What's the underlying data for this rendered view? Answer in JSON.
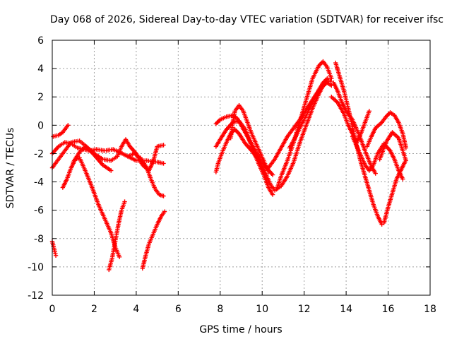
{
  "chart_data": {
    "type": "scatter",
    "title": "Day 068 of 2026, Sidereal Day-to-day VTEC variation (SDTVAR) for receiver ifsc",
    "xlabel": "GPS time / hours",
    "ylabel": "SDTVAR / TECUs",
    "xlim": [
      0,
      18
    ],
    "ylim": [
      -12,
      6
    ],
    "x_ticks": [
      "0",
      "2",
      "4",
      "6",
      "8",
      "10",
      "12",
      "14",
      "16",
      "18"
    ],
    "y_ticks": [
      "-12",
      "-10",
      "-8",
      "-6",
      "-4",
      "-2",
      "0",
      "2",
      "4",
      "6"
    ],
    "grid": true,
    "marker": "+",
    "series_color": "#ff0000",
    "series": [
      {
        "name": "trace-1",
        "points": [
          [
            0,
            -8.2
          ],
          [
            0.1,
            -8.8
          ],
          [
            0.17,
            -9.2
          ]
        ]
      },
      {
        "name": "trace-2",
        "points": [
          [
            0,
            -2.0
          ],
          [
            0.3,
            -1.5
          ],
          [
            0.6,
            -1.2
          ],
          [
            0.9,
            -1.3
          ],
          [
            1.2,
            -1.6
          ],
          [
            1.5,
            -1.7
          ],
          [
            1.8,
            -1.8
          ],
          [
            2.1,
            -1.7
          ],
          [
            2.5,
            -1.8
          ],
          [
            2.9,
            -1.7
          ],
          [
            3.2,
            -1.9
          ],
          [
            3.6,
            -2.2
          ],
          [
            4.0,
            -2.5
          ],
          [
            4.5,
            -2.5
          ],
          [
            5.0,
            -2.6
          ],
          [
            5.3,
            -2.7
          ]
        ]
      },
      {
        "name": "trace-3",
        "points": [
          [
            0,
            -3.0
          ],
          [
            0.3,
            -2.4
          ],
          [
            0.6,
            -1.8
          ],
          [
            0.9,
            -1.2
          ],
          [
            1.3,
            -1.1
          ],
          [
            1.7,
            -1.6
          ],
          [
            2.0,
            -2.0
          ],
          [
            2.4,
            -2.4
          ],
          [
            2.8,
            -2.5
          ],
          [
            3.1,
            -2.2
          ],
          [
            3.3,
            -1.5
          ],
          [
            3.5,
            -1.0
          ],
          [
            3.7,
            -1.5
          ],
          [
            4.0,
            -2.0
          ],
          [
            4.3,
            -2.8
          ],
          [
            4.6,
            -3.2
          ],
          [
            4.8,
            -2.6
          ],
          [
            5.0,
            -1.5
          ],
          [
            5.3,
            -1.4
          ]
        ]
      },
      {
        "name": "trace-4",
        "points": [
          [
            0.05,
            -0.8
          ],
          [
            0.3,
            -0.7
          ],
          [
            0.5,
            -0.5
          ],
          [
            0.75,
            0.0
          ]
        ]
      },
      {
        "name": "trace-5",
        "points": [
          [
            0.5,
            -4.4
          ],
          [
            0.7,
            -3.8
          ],
          [
            0.9,
            -3.0
          ],
          [
            1.1,
            -2.4
          ],
          [
            1.3,
            -2.3
          ],
          [
            1.6,
            -3.3
          ],
          [
            1.9,
            -4.4
          ],
          [
            2.2,
            -5.6
          ],
          [
            2.5,
            -6.6
          ],
          [
            2.8,
            -7.6
          ],
          [
            3.0,
            -8.6
          ],
          [
            3.2,
            -9.3
          ]
        ]
      },
      {
        "name": "trace-6",
        "points": [
          [
            1.0,
            -2.6
          ],
          [
            1.3,
            -1.9
          ],
          [
            1.6,
            -1.5
          ],
          [
            2.0,
            -2.1
          ],
          [
            2.4,
            -2.8
          ],
          [
            2.8,
            -3.2
          ]
        ]
      },
      {
        "name": "trace-7",
        "points": [
          [
            2.7,
            -10.2
          ],
          [
            2.85,
            -9.4
          ],
          [
            3.0,
            -8.2
          ],
          [
            3.15,
            -7.0
          ],
          [
            3.3,
            -6.0
          ],
          [
            3.45,
            -5.4
          ]
        ]
      },
      {
        "name": "trace-8",
        "points": [
          [
            3.6,
            -2.2
          ],
          [
            3.9,
            -2.0
          ],
          [
            4.2,
            -2.3
          ],
          [
            4.5,
            -3.0
          ],
          [
            4.7,
            -3.8
          ],
          [
            4.9,
            -4.5
          ],
          [
            5.1,
            -4.9
          ],
          [
            5.3,
            -5.0
          ]
        ]
      },
      {
        "name": "trace-9",
        "points": [
          [
            4.3,
            -10.1
          ],
          [
            4.45,
            -9.2
          ],
          [
            4.6,
            -8.4
          ],
          [
            4.8,
            -7.7
          ],
          [
            5.0,
            -7.0
          ],
          [
            5.2,
            -6.4
          ],
          [
            5.35,
            -6.1
          ]
        ]
      },
      {
        "name": "trace-10",
        "points": [
          [
            7.8,
            -3.3
          ],
          [
            7.9,
            -2.7
          ],
          [
            8.1,
            -1.9
          ],
          [
            8.3,
            -1.2
          ],
          [
            8.5,
            -0.6
          ],
          [
            8.7,
            -0.3
          ],
          [
            8.9,
            -0.6
          ],
          [
            9.2,
            -1.3
          ],
          [
            9.5,
            -1.8
          ],
          [
            9.8,
            -2.4
          ],
          [
            10.1,
            -3.2
          ],
          [
            10.4,
            -4.2
          ],
          [
            10.6,
            -4.6
          ],
          [
            10.9,
            -4.3
          ],
          [
            11.2,
            -3.6
          ],
          [
            11.5,
            -2.6
          ],
          [
            11.8,
            -1.2
          ],
          [
            12.1,
            0.0
          ],
          [
            12.4,
            1.2
          ],
          [
            12.7,
            2.2
          ],
          [
            12.9,
            2.8
          ],
          [
            13.1,
            3.0
          ],
          [
            13.3,
            2.8
          ]
        ]
      },
      {
        "name": "trace-11",
        "points": [
          [
            7.8,
            -1.5
          ],
          [
            8.0,
            -1.0
          ],
          [
            8.3,
            -0.3
          ],
          [
            8.6,
            0.2
          ],
          [
            8.9,
            0.3
          ],
          [
            9.2,
            -0.3
          ],
          [
            9.5,
            -1.5
          ],
          [
            9.8,
            -2.6
          ],
          [
            10.1,
            -3.6
          ],
          [
            10.3,
            -4.4
          ],
          [
            10.5,
            -4.9
          ]
        ]
      },
      {
        "name": "trace-12",
        "points": [
          [
            7.8,
            0.1
          ],
          [
            8.0,
            0.4
          ],
          [
            8.3,
            0.6
          ],
          [
            8.6,
            0.7
          ],
          [
            8.8,
            0.5
          ],
          [
            9.0,
            0.0
          ],
          [
            9.3,
            -0.8
          ],
          [
            9.6,
            -1.6
          ],
          [
            9.9,
            -2.4
          ],
          [
            10.2,
            -3.0
          ],
          [
            10.5,
            -3.5
          ]
        ]
      },
      {
        "name": "trace-13",
        "points": [
          [
            8.5,
            -0.9
          ],
          [
            8.6,
            0.2
          ],
          [
            8.7,
            1.0
          ],
          [
            8.9,
            1.4
          ],
          [
            9.1,
            1.0
          ],
          [
            9.3,
            0.2
          ],
          [
            9.5,
            -0.6
          ],
          [
            9.8,
            -1.6
          ],
          [
            10.1,
            -2.6
          ],
          [
            10.3,
            -3.3
          ]
        ]
      },
      {
        "name": "trace-14",
        "points": [
          [
            10.3,
            -3.0
          ],
          [
            10.6,
            -2.4
          ],
          [
            10.9,
            -1.6
          ],
          [
            11.2,
            -0.8
          ],
          [
            11.5,
            -0.2
          ],
          [
            11.8,
            0.4
          ],
          [
            12.1,
            1.1
          ],
          [
            12.4,
            1.8
          ],
          [
            12.7,
            2.5
          ],
          [
            12.9,
            3.0
          ],
          [
            13.1,
            3.3
          ],
          [
            13.25,
            3.1
          ]
        ]
      },
      {
        "name": "trace-15",
        "points": [
          [
            10.7,
            -4.5
          ],
          [
            10.9,
            -3.6
          ],
          [
            11.2,
            -2.5
          ],
          [
            11.5,
            -1.2
          ],
          [
            11.8,
            0.3
          ],
          [
            12.1,
            1.8
          ],
          [
            12.4,
            3.3
          ],
          [
            12.7,
            4.2
          ],
          [
            12.9,
            4.5
          ],
          [
            13.1,
            4.1
          ],
          [
            13.3,
            3.3
          ]
        ]
      },
      {
        "name": "trace-16",
        "points": [
          [
            11.3,
            -1.6
          ],
          [
            11.6,
            -0.8
          ],
          [
            11.9,
            0.1
          ],
          [
            12.2,
            1.0
          ],
          [
            12.5,
            1.9
          ],
          [
            12.8,
            2.6
          ],
          [
            13.1,
            3.1
          ]
        ]
      },
      {
        "name": "trace-17",
        "points": [
          [
            13.5,
            4.4
          ],
          [
            13.7,
            3.4
          ],
          [
            13.9,
            2.4
          ],
          [
            14.1,
            1.2
          ],
          [
            14.3,
            -0.1
          ],
          [
            14.5,
            -1.4
          ],
          [
            14.7,
            -2.6
          ],
          [
            14.9,
            -3.6
          ],
          [
            15.1,
            -4.6
          ],
          [
            15.3,
            -5.6
          ],
          [
            15.5,
            -6.4
          ],
          [
            15.7,
            -7.0
          ]
        ]
      },
      {
        "name": "trace-18",
        "points": [
          [
            13.4,
            3.0
          ],
          [
            13.6,
            2.4
          ],
          [
            13.8,
            1.6
          ],
          [
            14.0,
            1.0
          ],
          [
            14.3,
            0.4
          ],
          [
            14.6,
            -0.6
          ],
          [
            14.9,
            -1.8
          ],
          [
            15.2,
            -2.9
          ],
          [
            15.4,
            -3.4
          ]
        ]
      },
      {
        "name": "trace-19",
        "points": [
          [
            13.3,
            2.0
          ],
          [
            13.6,
            1.6
          ],
          [
            13.9,
            0.8
          ],
          [
            14.1,
            0.0
          ],
          [
            14.3,
            -0.6
          ],
          [
            14.5,
            -1.2
          ],
          [
            14.7,
            -0.6
          ],
          [
            14.9,
            0.2
          ],
          [
            15.1,
            1.0
          ]
        ]
      },
      {
        "name": "trace-20",
        "points": [
          [
            14.3,
            -0.8
          ],
          [
            14.6,
            -1.8
          ],
          [
            14.9,
            -2.8
          ],
          [
            15.1,
            -3.2
          ],
          [
            15.3,
            -2.8
          ],
          [
            15.5,
            -2.0
          ],
          [
            15.8,
            -1.3
          ],
          [
            16.1,
            -1.8
          ],
          [
            16.3,
            -2.4
          ],
          [
            16.5,
            -3.2
          ],
          [
            16.7,
            -3.8
          ]
        ]
      },
      {
        "name": "trace-21",
        "points": [
          [
            15.0,
            -1.5
          ],
          [
            15.2,
            -0.8
          ],
          [
            15.4,
            -0.2
          ],
          [
            15.7,
            0.2
          ],
          [
            15.9,
            0.6
          ],
          [
            16.1,
            0.9
          ],
          [
            16.3,
            0.7
          ],
          [
            16.5,
            0.2
          ],
          [
            16.7,
            -0.6
          ],
          [
            16.85,
            -1.6
          ]
        ]
      },
      {
        "name": "trace-22",
        "points": [
          [
            15.8,
            -6.9
          ],
          [
            16.0,
            -5.8
          ],
          [
            16.2,
            -4.8
          ],
          [
            16.4,
            -3.8
          ],
          [
            16.6,
            -3.2
          ],
          [
            16.8,
            -2.6
          ]
        ]
      },
      {
        "name": "trace-23",
        "points": [
          [
            15.6,
            -2.4
          ],
          [
            15.9,
            -1.2
          ],
          [
            16.2,
            -0.5
          ],
          [
            16.5,
            -0.9
          ],
          [
            16.7,
            -1.8
          ],
          [
            16.85,
            -2.5
          ]
        ]
      }
    ]
  }
}
